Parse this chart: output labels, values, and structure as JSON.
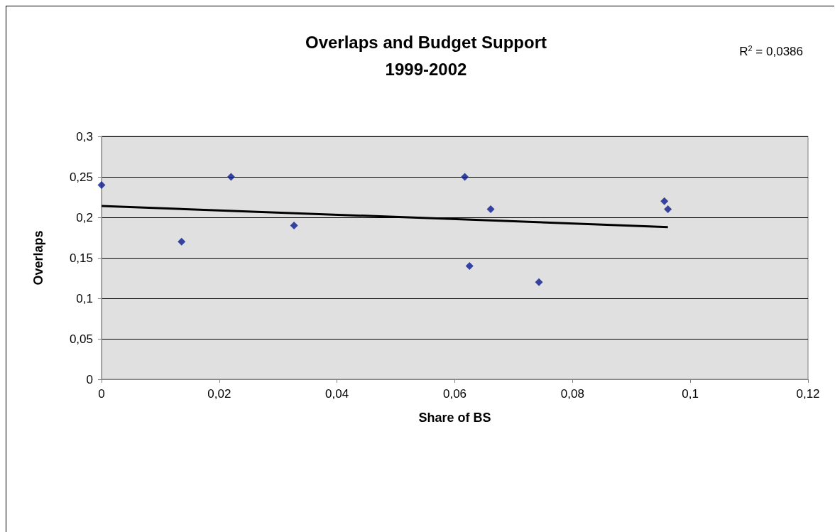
{
  "chart_data": {
    "type": "scatter",
    "title": "Overlaps and Budget Support\n1999-2002",
    "xlabel": "Share of BS",
    "ylabel": "Overlaps",
    "annotations": [
      "R$^{2}$ = 0,0386"
    ],
    "series": [
      {
        "color": "#0a1a8f",
        "x": [
          0,
          0.0136,
          0.022,
          0.0327,
          0.0617,
          0.0625,
          0.0661,
          0.0743,
          0.0956,
          0.0962
        ],
        "values": [
          0.24,
          0.17,
          0.25,
          0.19,
          0.25,
          0.14,
          0.21,
          0.12,
          0.22,
          0.21
        ]
      },
      {
        "type": "line",
        "color": "#000000",
        "x": [
          0,
          0.0962
        ],
        "values": [
          0.214,
          0.188
        ],
        "marker": "none"
      }
    ],
    "xlim": [
      0,
      0.12
    ],
    "xticks": [
      0,
      {
        "value": 0.02,
        "label": "0,02"
      },
      {
        "value": 0.04,
        "label": "0,04"
      },
      {
        "value": 0.06,
        "label": "0,06"
      },
      {
        "value": 0.08,
        "label": "0,08"
      },
      {
        "value": 0.1,
        "label": "0,1"
      },
      {
        "value": 0.12,
        "label": "0,12"
      }
    ],
    "ylim": [
      0,
      0.3
    ],
    "yticks": [
      0,
      {
        "value": 0.05,
        "label": "0,05"
      },
      {
        "value": 0.1,
        "label": "0,1"
      },
      {
        "value": 0.15,
        "label": "0,15"
      },
      {
        "value": 0.2,
        "label": "0,2"
      },
      {
        "value": 0.25,
        "label": "0,25"
      },
      {
        "value": 0.3,
        "label": "0,3"
      }
    ],
    "grid": "y",
    "marker": "diamond"
  }
}
